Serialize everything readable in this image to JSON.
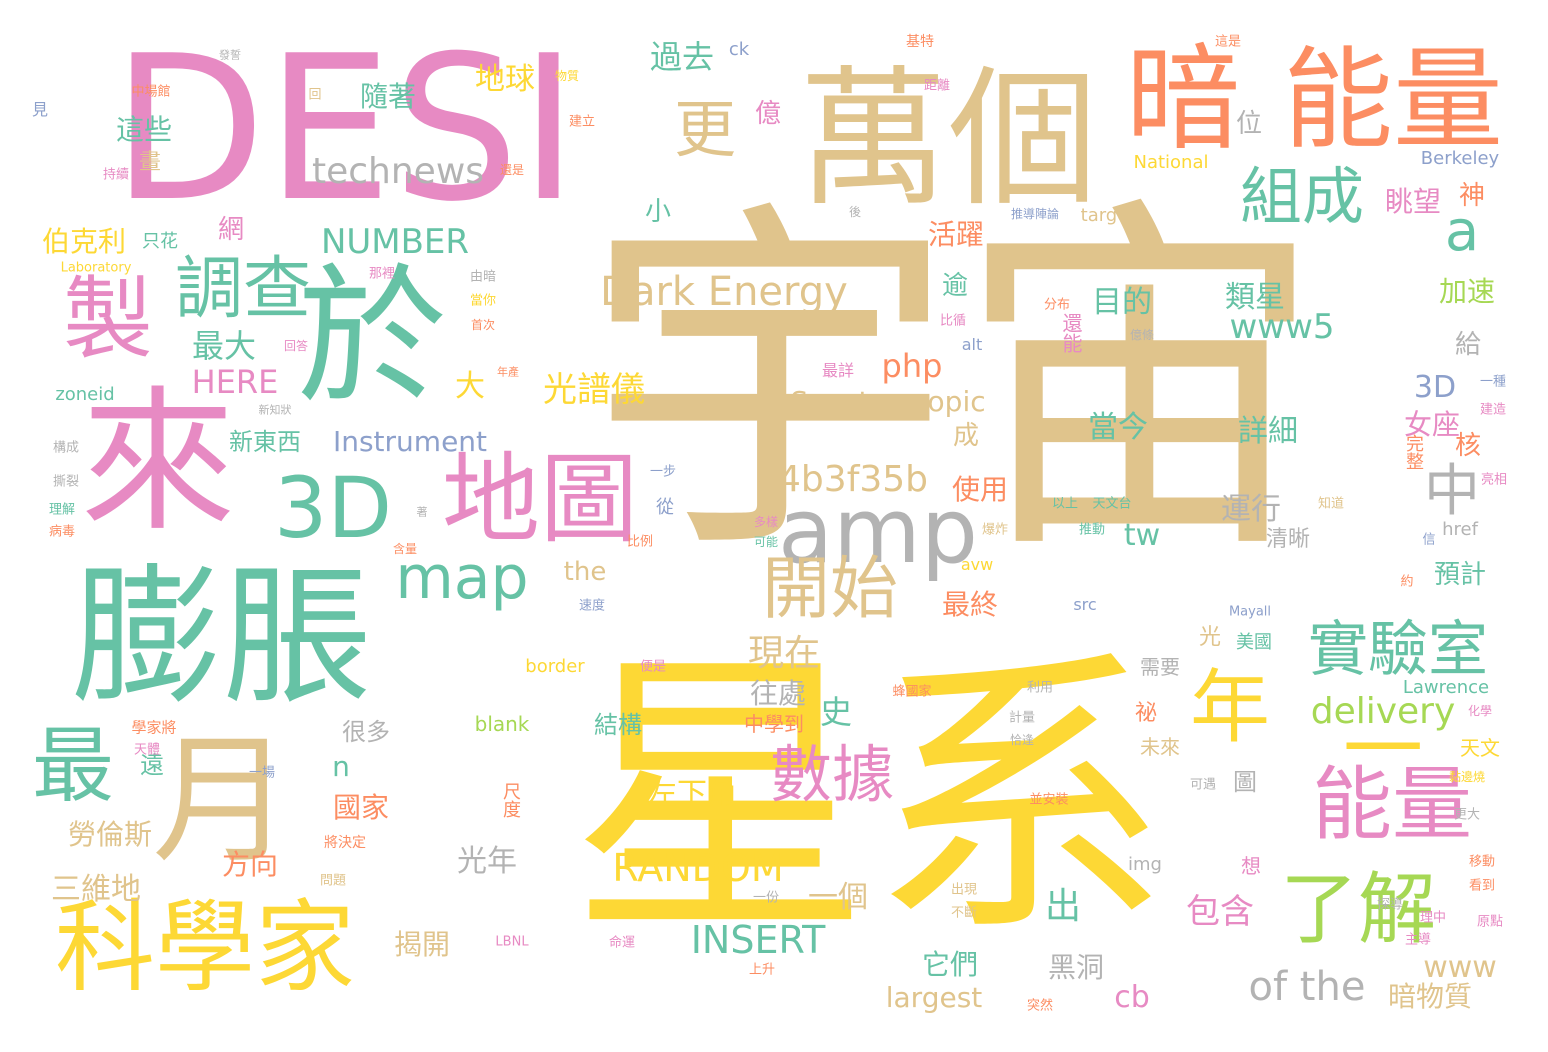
{
  "palette": {
    "gold": "#e0c48c",
    "yellow": "#fdd835",
    "pink": "#e78ac3",
    "teal": "#66c2a5",
    "orange": "#fc8d62",
    "lime": "#a6d854",
    "gray": "#b3b3b3",
    "blue": "#8da0cb"
  },
  "words": [
    {
      "t": "宇宙",
      "c": "gold"
    },
    {
      "t": "星系",
      "c": "yellow"
    },
    {
      "t": "DESI",
      "c": "pink"
    },
    {
      "t": "萬個",
      "c": "gold"
    },
    {
      "t": "暗",
      "c": "orange"
    },
    {
      "t": "能量",
      "c": "orange"
    },
    {
      "t": "於",
      "c": "teal"
    },
    {
      "t": "來",
      "c": "pink"
    },
    {
      "t": "膨脹",
      "c": "teal"
    },
    {
      "t": "月",
      "c": "gold"
    },
    {
      "t": "科學家",
      "c": "yellow"
    },
    {
      "t": "地圖",
      "c": "pink"
    },
    {
      "t": "3D",
      "c": "teal"
    },
    {
      "t": "製",
      "c": "pink"
    },
    {
      "t": "調查",
      "c": "teal"
    },
    {
      "t": "最",
      "c": "teal"
    },
    {
      "t": "amp",
      "c": "gray"
    },
    {
      "t": "map",
      "c": "teal"
    },
    {
      "t": "開始",
      "c": "gold"
    },
    {
      "t": "年",
      "c": "yellow"
    },
    {
      "t": "一",
      "c": "yellow"
    },
    {
      "t": "能量",
      "c": "pink"
    },
    {
      "t": "了解",
      "c": "lime"
    },
    {
      "t": "實驗室",
      "c": "teal"
    },
    {
      "t": "數據",
      "c": "pink"
    },
    {
      "t": "組成",
      "c": "teal"
    },
    {
      "t": "更",
      "c": "gold"
    },
    {
      "t": "a",
      "c": "teal"
    },
    {
      "t": "中",
      "c": "gray"
    },
    {
      "t": "technews",
      "c": "gray"
    },
    {
      "t": "Dark Energy",
      "c": "gold"
    },
    {
      "t": "NUMBER",
      "c": "teal"
    },
    {
      "t": "www5",
      "c": "teal"
    },
    {
      "t": "delivery",
      "c": "lime"
    },
    {
      "t": "of the",
      "c": "gray"
    },
    {
      "t": "INSERT",
      "c": "teal"
    },
    {
      "t": "RANDOM",
      "c": "yellow"
    },
    {
      "t": "a4b3f35b",
      "c": "gold"
    },
    {
      "t": "Spectroscopic",
      "c": "gold"
    },
    {
      "t": "Instrument",
      "c": "blue"
    },
    {
      "t": "HERE",
      "c": "pink"
    },
    {
      "t": "php",
      "c": "orange"
    },
    {
      "t": "光譜儀",
      "c": "yellow"
    },
    {
      "t": "最大",
      "c": "teal"
    },
    {
      "t": "伯克利",
      "c": "yellow"
    },
    {
      "t": "過去",
      "c": "teal"
    },
    {
      "t": "地球",
      "c": "yellow"
    },
    {
      "t": "隨著",
      "c": "teal"
    },
    {
      "t": "這些",
      "c": "teal"
    },
    {
      "t": "目的",
      "c": "teal"
    },
    {
      "t": "類星",
      "c": "teal"
    },
    {
      "t": "眺望",
      "c": "pink"
    },
    {
      "t": "活躍",
      "c": "orange"
    },
    {
      "t": "當今",
      "c": "teal"
    },
    {
      "t": "詳細",
      "c": "teal"
    },
    {
      "t": "運行",
      "c": "gray"
    },
    {
      "t": "使用",
      "c": "orange"
    },
    {
      "t": "女座",
      "c": "pink"
    },
    {
      "t": "3D",
      "c": "blue"
    },
    {
      "t": "現在",
      "c": "gold"
    },
    {
      "t": "往處",
      "c": "gray"
    },
    {
      "t": "最終",
      "c": "orange"
    },
    {
      "t": "左下角",
      "c": "yellow"
    },
    {
      "t": "光年",
      "c": "gray"
    },
    {
      "t": "三維地",
      "c": "gold"
    },
    {
      "t": "勞倫斯",
      "c": "gold"
    },
    {
      "t": "國家",
      "c": "orange"
    },
    {
      "t": "方向",
      "c": "orange"
    },
    {
      "t": "一個",
      "c": "gold"
    },
    {
      "t": "包含",
      "c": "pink"
    },
    {
      "t": "揭開",
      "c": "gold"
    },
    {
      "t": "它們",
      "c": "teal"
    },
    {
      "t": "黑洞",
      "c": "gray"
    },
    {
      "t": "暗物質",
      "c": "gold"
    },
    {
      "t": "預計",
      "c": "teal"
    },
    {
      "t": "清晰",
      "c": "gray"
    },
    {
      "t": "結構",
      "c": "teal"
    },
    {
      "t": "很多",
      "c": "gray"
    },
    {
      "t": "新東西",
      "c": "teal"
    },
    {
      "t": "largest",
      "c": "gold"
    },
    {
      "t": "cb",
      "c": "pink"
    },
    {
      "t": "www",
      "c": "gold"
    },
    {
      "t": "tw",
      "c": "teal"
    },
    {
      "t": "the",
      "c": "gold"
    },
    {
      "t": "n",
      "c": "teal"
    },
    {
      "t": "出",
      "c": "teal"
    },
    {
      "t": "史",
      "c": "teal"
    },
    {
      "t": "大",
      "c": "yellow"
    },
    {
      "t": "小",
      "c": "teal"
    },
    {
      "t": "位",
      "c": "gray"
    },
    {
      "t": "億",
      "c": "pink"
    },
    {
      "t": "神",
      "c": "orange"
    },
    {
      "t": "網",
      "c": "pink"
    },
    {
      "t": "逾",
      "c": "teal"
    },
    {
      "t": "成",
      "c": "gold"
    },
    {
      "t": "給",
      "c": "gray"
    },
    {
      "t": "核",
      "c": "orange"
    },
    {
      "t": "加速",
      "c": "lime"
    },
    {
      "t": "天文",
      "c": "yellow"
    },
    {
      "t": "遠",
      "c": "teal"
    },
    {
      "t": "光",
      "c": "gold"
    },
    {
      "t": "美國",
      "c": "teal"
    },
    {
      "t": "需要",
      "c": "gray"
    },
    {
      "t": "祕",
      "c": "orange"
    },
    {
      "t": "未來",
      "c": "gold"
    },
    {
      "t": "圖",
      "c": "gray"
    },
    {
      "t": "中學到",
      "c": "orange"
    },
    {
      "t": "National",
      "c": "yellow"
    },
    {
      "t": "Berkeley",
      "c": "blue"
    },
    {
      "t": "Lawrence",
      "c": "teal"
    },
    {
      "t": "target",
      "c": "gold"
    },
    {
      "t": "zoneid",
      "c": "teal"
    },
    {
      "t": "Laboratory",
      "c": "yellow"
    },
    {
      "t": "blank",
      "c": "lime"
    },
    {
      "t": "border",
      "c": "yellow"
    },
    {
      "t": "ck",
      "c": "blue"
    },
    {
      "t": "src",
      "c": "blue"
    },
    {
      "t": "img",
      "c": "gray"
    },
    {
      "t": "href",
      "c": "gray"
    },
    {
      "t": "avw",
      "c": "yellow"
    },
    {
      "t": "alt",
      "c": "blue"
    },
    {
      "t": "Mayall",
      "c": "blue"
    },
    {
      "t": "LBNL",
      "c": "pink"
    },
    {
      "t": "基特",
      "c": "orange"
    },
    {
      "t": "這是",
      "c": "orange"
    },
    {
      "t": "中場館",
      "c": "orange"
    },
    {
      "t": "物質",
      "c": "yellow"
    },
    {
      "t": "建立",
      "c": "orange"
    },
    {
      "t": "持續",
      "c": "pink"
    },
    {
      "t": "畫",
      "c": "gold"
    },
    {
      "t": "還是",
      "c": "orange"
    },
    {
      "t": "只花",
      "c": "teal"
    },
    {
      "t": "那裡",
      "c": "pink"
    },
    {
      "t": "由暗",
      "c": "gray"
    },
    {
      "t": "當你",
      "c": "yellow"
    },
    {
      "t": "首次",
      "c": "orange"
    },
    {
      "t": "回答",
      "c": "pink"
    },
    {
      "t": "新知狀",
      "c": "gray"
    },
    {
      "t": "構成",
      "c": "gray"
    },
    {
      "t": "撕裂",
      "c": "gray"
    },
    {
      "t": "理解",
      "c": "teal"
    },
    {
      "t": "病毒",
      "c": "orange"
    },
    {
      "t": "含量",
      "c": "orange"
    },
    {
      "t": "比例",
      "c": "orange"
    },
    {
      "t": "從",
      "c": "blue"
    },
    {
      "t": "一步",
      "c": "blue"
    },
    {
      "t": "速度",
      "c": "blue"
    },
    {
      "t": "尺度",
      "c": "orange"
    },
    {
      "t": "將決定",
      "c": "orange"
    },
    {
      "t": "問題",
      "c": "gold"
    },
    {
      "t": "一份",
      "c": "gray"
    },
    {
      "t": "命運",
      "c": "pink"
    },
    {
      "t": "上升",
      "c": "orange"
    },
    {
      "t": "突然",
      "c": "orange"
    },
    {
      "t": "不斷",
      "c": "gold"
    },
    {
      "t": "出現",
      "c": "gold"
    },
    {
      "t": "便是",
      "c": "pink"
    },
    {
      "t": "蜂國家",
      "c": "orange"
    },
    {
      "t": "利用",
      "c": "gray"
    },
    {
      "t": "計量",
      "c": "gray"
    },
    {
      "t": "恰逢",
      "c": "gray"
    },
    {
      "t": "並安裝",
      "c": "orange"
    },
    {
      "t": "可遇",
      "c": "gray"
    },
    {
      "t": "化學",
      "c": "pink"
    },
    {
      "t": "黏邊燒",
      "c": "yellow"
    },
    {
      "t": "更大",
      "c": "gray"
    },
    {
      "t": "移動",
      "c": "orange"
    },
    {
      "t": "看到",
      "c": "orange"
    },
    {
      "t": "原點",
      "c": "pink"
    },
    {
      "t": "探導",
      "c": "gray"
    },
    {
      "t": "理中",
      "c": "pink"
    },
    {
      "t": "主導",
      "c": "pink"
    },
    {
      "t": "想",
      "c": "pink"
    },
    {
      "t": "約",
      "c": "orange"
    },
    {
      "t": "信",
      "c": "blue"
    },
    {
      "t": "完整",
      "c": "orange"
    },
    {
      "t": "亮相",
      "c": "pink"
    },
    {
      "t": "知道",
      "c": "gold"
    },
    {
      "t": "建造",
      "c": "pink"
    },
    {
      "t": "一種",
      "c": "blue"
    },
    {
      "t": "天文台",
      "c": "teal"
    },
    {
      "t": "以上",
      "c": "teal"
    },
    {
      "t": "推動",
      "c": "teal"
    },
    {
      "t": "爆炸",
      "c": "gold"
    },
    {
      "t": "多樣",
      "c": "pink"
    },
    {
      "t": "可能",
      "c": "teal"
    },
    {
      "t": "分布",
      "c": "orange"
    },
    {
      "t": "還能",
      "c": "pink"
    },
    {
      "t": "億條",
      "c": "gray"
    },
    {
      "t": "比循",
      "c": "pink"
    },
    {
      "t": "最詳",
      "c": "pink"
    },
    {
      "t": "距離",
      "c": "pink"
    },
    {
      "t": "後",
      "c": "gray"
    },
    {
      "t": "推導陣論",
      "c": "blue"
    },
    {
      "t": "一場",
      "c": "blue"
    },
    {
      "t": "學家將",
      "c": "orange"
    },
    {
      "t": "天體",
      "c": "pink"
    },
    {
      "t": "年產",
      "c": "orange"
    },
    {
      "t": "見",
      "c": "blue"
    },
    {
      "t": "回",
      "c": "gold"
    },
    {
      "t": "發誓",
      "c": "gray"
    },
    {
      "t": "著",
      "c": "gray"
    }
  ]
}
